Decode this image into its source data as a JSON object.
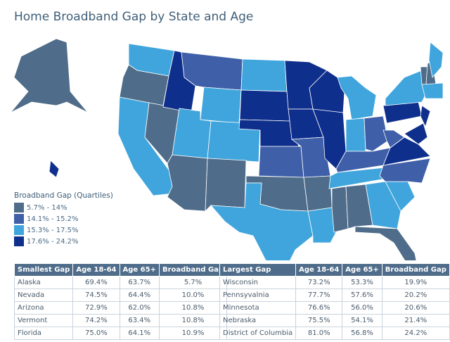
{
  "title": "Home Broadband Gap by State and Age",
  "chart_data": {
    "type": "choropleth",
    "title": "Home Broadband Gap by State and Age",
    "legend": {
      "title": "Broadband Gap (Quartiles)",
      "placement": "bottom-left",
      "items": [
        {
          "label": "5.7% - 14%",
          "color": "#4f6d8a"
        },
        {
          "label": "14.1% - 15.2%",
          "color": "#3f5fa8"
        },
        {
          "label": "15.3% - 17.5%",
          "color": "#3fa5dc"
        },
        {
          "label": "17.6% - 24.2%",
          "color": "#0f2f8c"
        }
      ]
    },
    "state_quartile": {
      "AK": 1,
      "OR": 1,
      "NV": 1,
      "AZ": 1,
      "NM": 1,
      "OK": 1,
      "AR": 1,
      "MS": 1,
      "AL": 1,
      "FL": 1,
      "VT": 1,
      "NH": 1,
      "MT": 2,
      "KS": 2,
      "MO": 2,
      "OH": 2,
      "WV": 2,
      "KY": 2,
      "NC": 2,
      "WA": 3,
      "CA": 3,
      "UT": 3,
      "WY": 3,
      "CO": 3,
      "ND": 3,
      "TX": 3,
      "LA": 3,
      "MI": 3,
      "IN": 3,
      "TN": 3,
      "GA": 3,
      "SC": 3,
      "NY": 3,
      "ME": 3,
      "MA": 3,
      "HI": 4,
      "ID": 4,
      "MN": 4,
      "WI": 4,
      "IA": 4,
      "SD": 4,
      "NE": 4,
      "IL": 4,
      "PA": 4,
      "VA": 4,
      "NJ": 4,
      "MD": 4
    }
  },
  "tables": [
    {
      "headers": [
        "Smallest Gap",
        "Age 18-64",
        "Age 65+",
        "Broadband Gap"
      ],
      "rows": [
        [
          "Alaska",
          "69.4%",
          "63.7%",
          "5.7%"
        ],
        [
          "Nevada",
          "74.5%",
          "64.4%",
          "10.0%"
        ],
        [
          "Arizona",
          "72.9%",
          "62.0%",
          "10.8%"
        ],
        [
          "Vermont",
          "74.2%",
          "63.4%",
          "10.8%"
        ],
        [
          "Florida",
          "75.0%",
          "64.1%",
          "10.9%"
        ]
      ]
    },
    {
      "headers": [
        "Largest Gap",
        "Age 18-64",
        "Age 65+",
        "Broadband Gap"
      ],
      "rows": [
        [
          "Wisconsin",
          "73.2%",
          "53.3%",
          "19.9%"
        ],
        [
          "Pennsyvalnia",
          "77.7%",
          "57.6%",
          "20.2%"
        ],
        [
          "Minnesota",
          "76.6%",
          "56.0%",
          "20.6%"
        ],
        [
          "Nebraska",
          "75.5%",
          "54.1%",
          "21.4%"
        ],
        [
          "District of Columbia",
          "81.0%",
          "56.8%",
          "24.2%"
        ]
      ]
    }
  ]
}
